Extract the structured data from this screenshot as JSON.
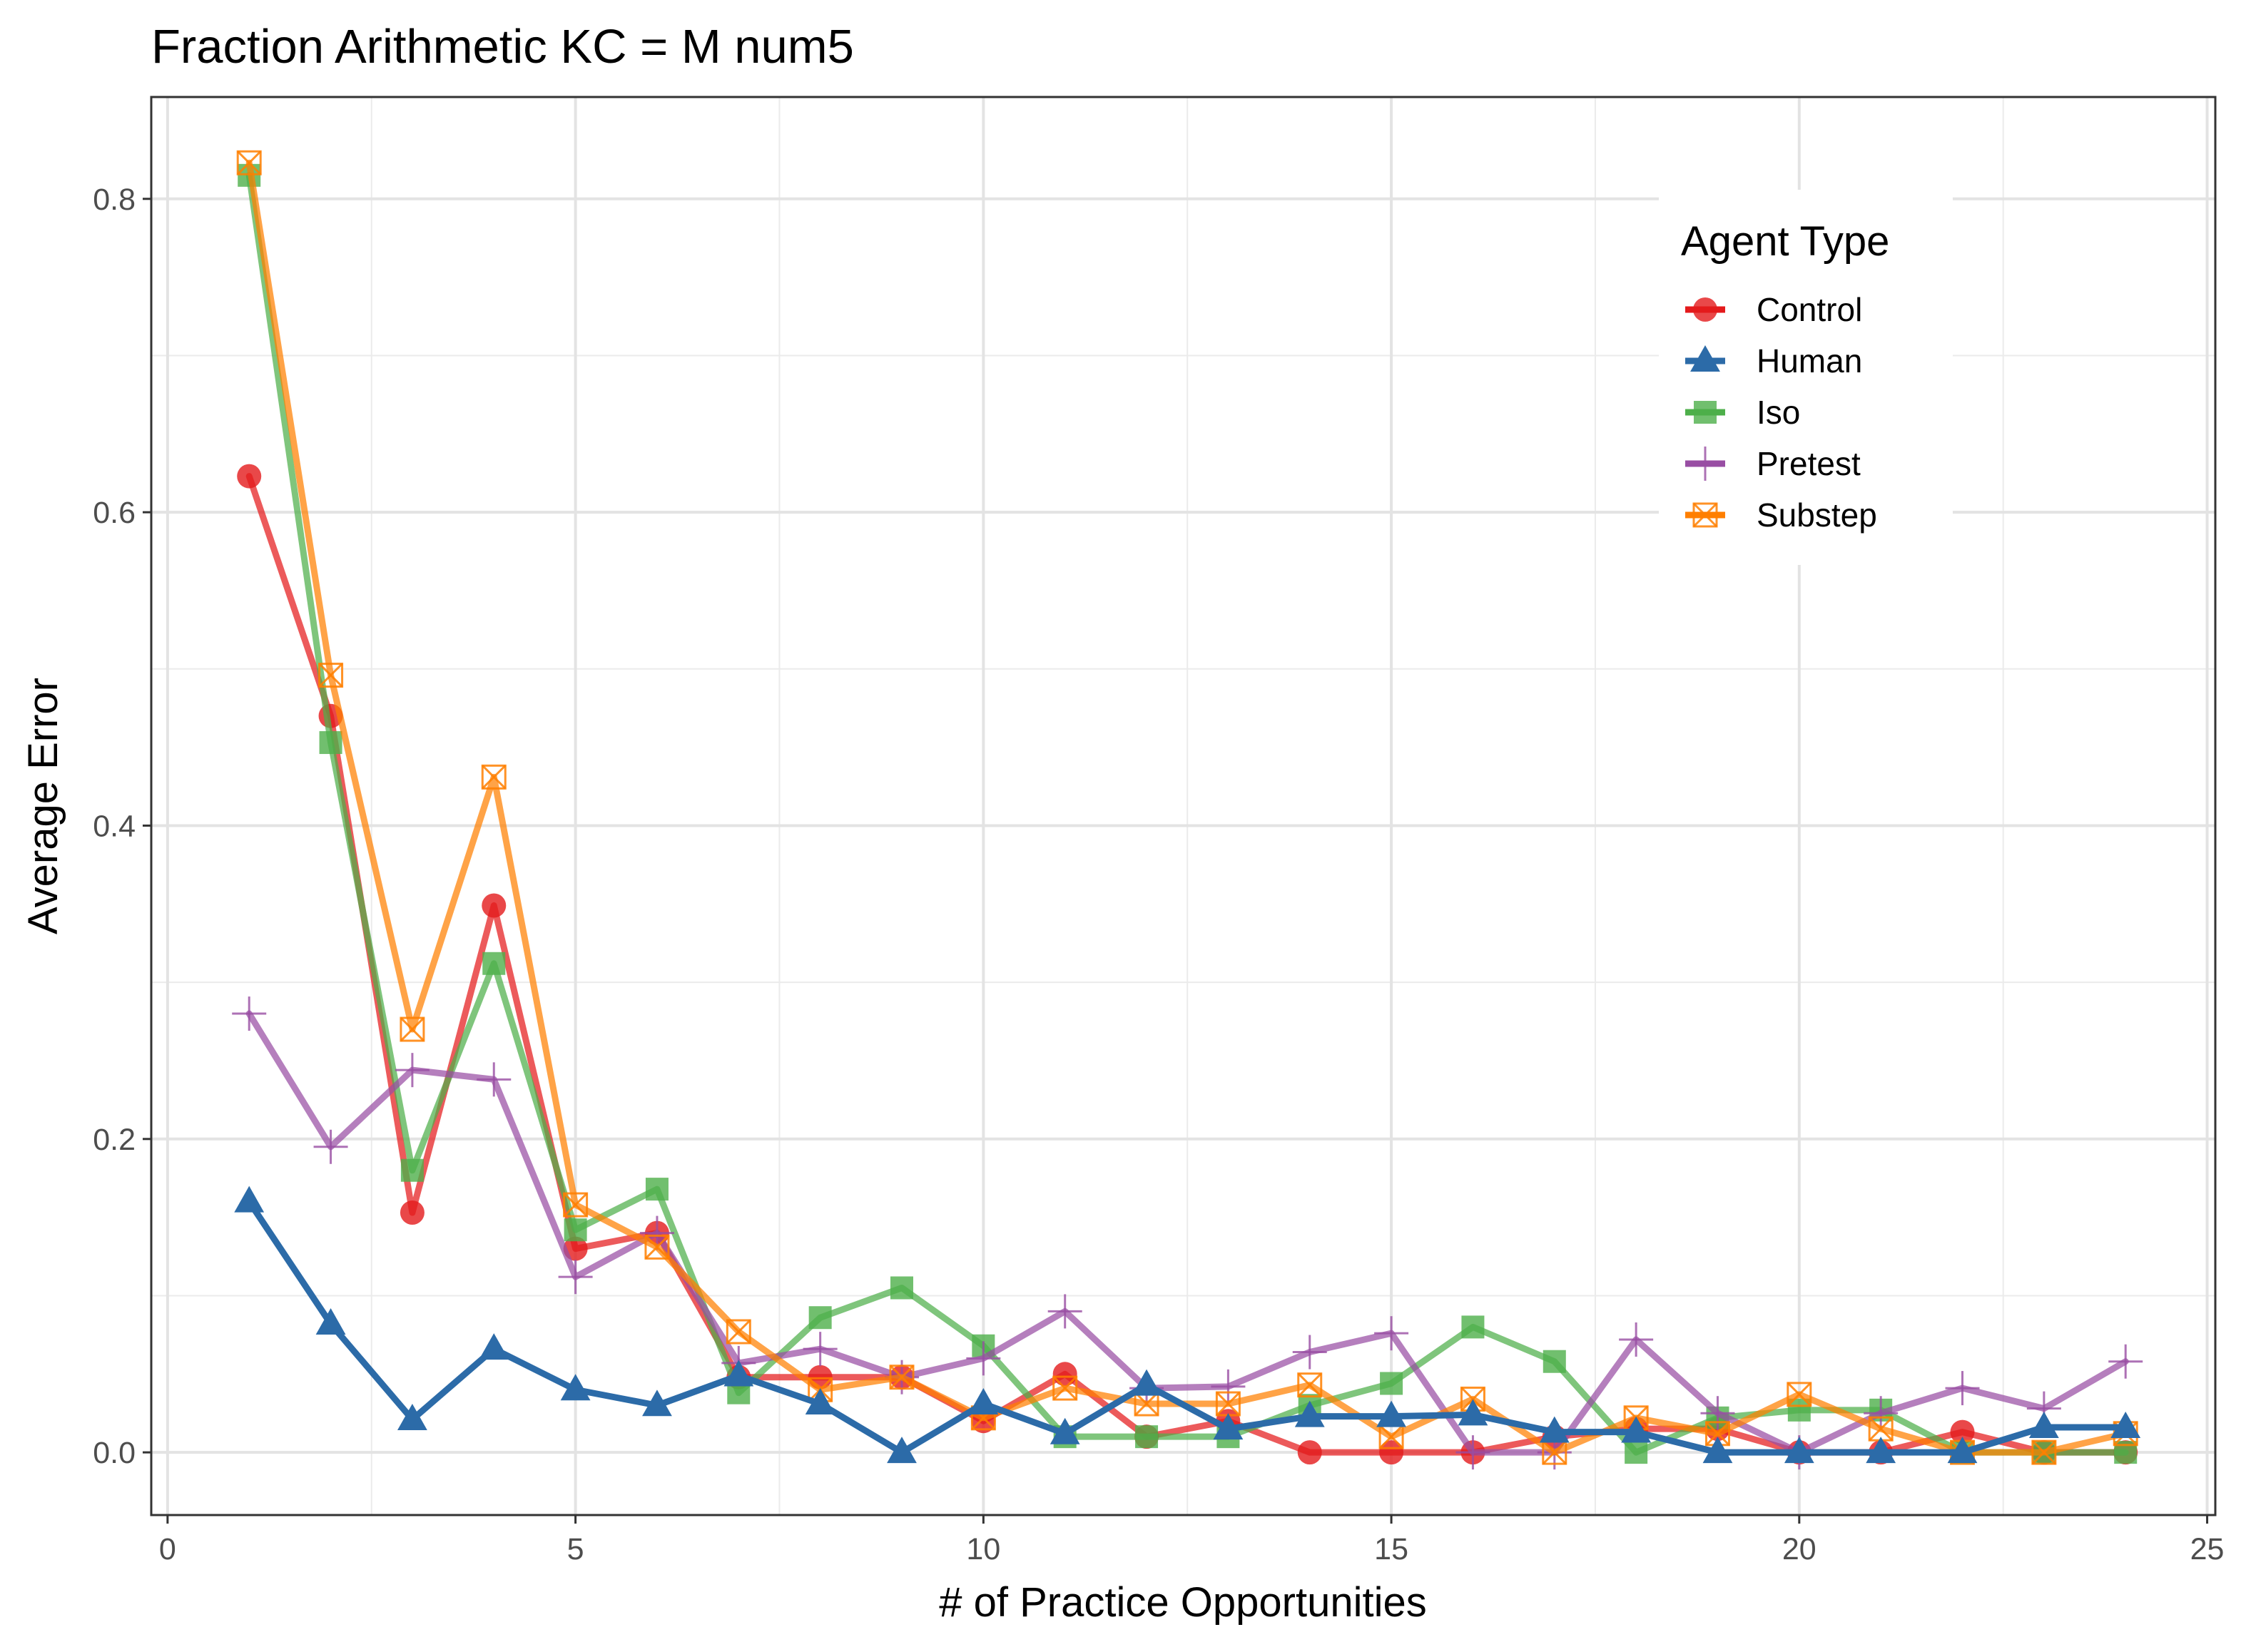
{
  "chart_data": {
    "type": "line",
    "title": "Fraction Arithmetic KC =  M num5",
    "xlabel": "# of Practice Opportunities",
    "ylabel": "Average Error",
    "xlim": [
      -0.2,
      25.1
    ],
    "ylim": [
      -0.04,
      0.865
    ],
    "xticks": [
      0,
      5,
      10,
      15,
      20,
      25
    ],
    "yticks": [
      0.0,
      0.2,
      0.4,
      0.6,
      0.8
    ],
    "xtick_labels": [
      "0",
      "5",
      "10",
      "15",
      "20",
      "25"
    ],
    "ytick_labels": [
      "0.0",
      "0.2",
      "0.4",
      "0.6",
      "0.8"
    ],
    "grid": true,
    "legend": {
      "title": "Agent Type",
      "placement": "top-right"
    },
    "x": [
      1,
      2,
      3,
      4,
      5,
      6,
      7,
      8,
      9,
      10,
      11,
      12,
      13,
      14,
      15,
      16,
      17,
      18,
      19,
      20,
      21,
      22,
      23,
      24
    ],
    "series": [
      {
        "name": "Control",
        "color": "#e41a1c",
        "marker": "circle",
        "values": [
          0.623,
          0.47,
          0.153,
          0.349,
          0.13,
          0.14,
          0.048,
          0.048,
          0.048,
          0.02,
          0.05,
          0.01,
          0.02,
          0.0,
          0.0,
          0.0,
          0.01,
          0.015,
          0.015,
          0.0,
          0.0,
          0.013,
          0.0,
          0.0
        ]
      },
      {
        "name": "Iso",
        "color": "#4daf4a",
        "marker": "square",
        "values": [
          0.815,
          0.453,
          0.18,
          0.312,
          0.142,
          0.168,
          0.038,
          0.086,
          0.105,
          0.068,
          0.01,
          0.01,
          0.01,
          0.03,
          0.044,
          0.08,
          0.058,
          0.0,
          0.022,
          0.027,
          0.027,
          0.0,
          0.0,
          0.0
        ]
      },
      {
        "name": "Pretest",
        "color": "#984ea3",
        "marker": "plus",
        "values": [
          0.28,
          0.195,
          0.244,
          0.238,
          0.112,
          0.14,
          0.057,
          0.066,
          0.048,
          0.06,
          0.09,
          0.041,
          0.042,
          0.064,
          0.076,
          0.0,
          0.0,
          0.072,
          0.025,
          0.0,
          0.025,
          0.041,
          0.028,
          0.058
        ]
      },
      {
        "name": "Substep",
        "color": "#ff7f00",
        "marker": "square-x",
        "values": [
          0.823,
          0.496,
          0.27,
          0.431,
          0.158,
          0.131,
          0.077,
          0.04,
          0.048,
          0.022,
          0.041,
          0.031,
          0.031,
          0.043,
          0.01,
          0.034,
          0.0,
          0.022,
          0.012,
          0.037,
          0.015,
          0.0,
          0.0,
          0.012
        ]
      },
      {
        "name": "Human",
        "color": "#2c6ba8",
        "marker": "triangle",
        "values": [
          0.16,
          0.082,
          0.021,
          0.066,
          0.04,
          0.03,
          0.049,
          0.031,
          0.0,
          0.031,
          0.012,
          0.043,
          0.015,
          0.023,
          0.023,
          0.024,
          0.013,
          0.013,
          0.0,
          0.0,
          0.0,
          0.0,
          0.016,
          0.016
        ]
      }
    ],
    "legend_order": [
      "Control",
      "Human",
      "Iso",
      "Pretest",
      "Substep"
    ]
  }
}
